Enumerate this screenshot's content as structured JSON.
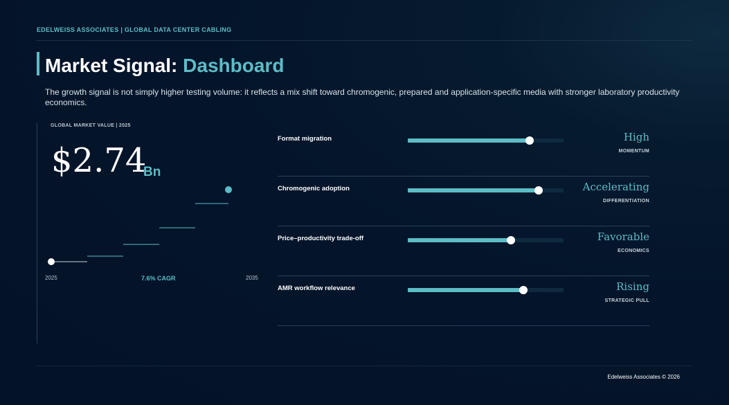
{
  "header": {
    "kicker": "EDELWEISS ASSOCIATES | GLOBAL DATA CENTER CABLING",
    "title_main": "Market Signal: ",
    "title_accent": "Dashboard",
    "subtitle": "The growth signal is not simply higher testing volume: it reflects a mix shift toward chromogenic, prepared and application-specific media with stronger laboratory productivity economics."
  },
  "market": {
    "label": "GLOBAL MARKET VALUE | 2025",
    "value": "$2.74",
    "unit": "Bn",
    "start_year": "2025",
    "end_year": "2035",
    "cagr": "7.6% CAGR"
  },
  "metrics": [
    {
      "name": "Format migration",
      "level": 0.78,
      "value": "High",
      "tag": "MOMENTUM"
    },
    {
      "name": "Chromogenic adoption",
      "level": 0.84,
      "value": "Accelerating",
      "tag": "DIFFERENTIATION"
    },
    {
      "name": "Price–productivity trade-off",
      "level": 0.66,
      "value": "Favorable",
      "tag": "ECONOMICS"
    },
    {
      "name": "AMR workflow relevance",
      "level": 0.74,
      "value": "Rising",
      "tag": "STRATEGIC PULL"
    }
  ],
  "colors": {
    "accent": "#5cbdc6",
    "background": "#04142a"
  },
  "footer": {
    "text": "Edelweiss Associates © 2026"
  }
}
